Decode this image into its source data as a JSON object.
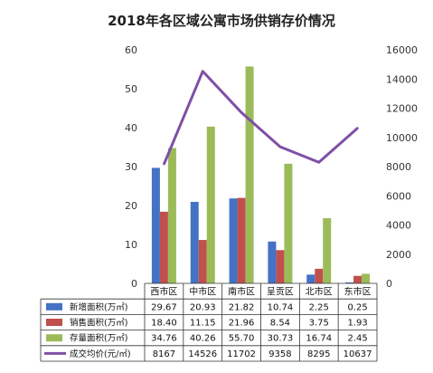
{
  "chart_data": {
    "type": "bar",
    "title": "2018年各区域公寓市场供销存价情况",
    "categories": [
      "西市区",
      "中市区",
      "南市区",
      "呈贡区",
      "北市区",
      "东市区"
    ],
    "y_left": {
      "min": 0,
      "max": 60,
      "ticks": [
        0,
        10,
        20,
        30,
        40,
        50,
        60
      ]
    },
    "y_right": {
      "min": 0,
      "max": 16000,
      "ticks": [
        0,
        2000,
        4000,
        6000,
        8000,
        10000,
        12000,
        14000,
        16000
      ]
    },
    "series": [
      {
        "name": "新增面积(万㎡)",
        "type": "bar",
        "axis": "left",
        "color": "#4472C4",
        "values": [
          29.67,
          20.93,
          21.82,
          10.74,
          2.25,
          0.25
        ],
        "display": [
          "29.67",
          "20.93",
          "21.82",
          "10.74",
          "2.25",
          "0.25"
        ]
      },
      {
        "name": "销售面积(万㎡)",
        "type": "bar",
        "axis": "left",
        "color": "#C0504D",
        "values": [
          18.4,
          11.15,
          21.96,
          8.54,
          3.75,
          1.93
        ],
        "display": [
          "18.40",
          "11.15",
          "21.96",
          "8.54",
          "3.75",
          "1.93"
        ]
      },
      {
        "name": "存量面积(万㎡)",
        "type": "bar",
        "axis": "left",
        "color": "#9BBB59",
        "values": [
          34.76,
          40.26,
          55.7,
          30.73,
          16.74,
          2.45
        ],
        "display": [
          "34.76",
          "40.26",
          "55.70",
          "30.73",
          "16.74",
          "2.45"
        ]
      },
      {
        "name": "成交均价(元/㎡)",
        "type": "line",
        "axis": "right",
        "color": "#7F4FA7",
        "values": [
          8167,
          14526,
          11702,
          9358,
          8295,
          10637
        ],
        "display": [
          "8167",
          "14526",
          "11702",
          "9358",
          "8295",
          "10637"
        ]
      }
    ],
    "grid": false,
    "legend": "table-bottom"
  }
}
